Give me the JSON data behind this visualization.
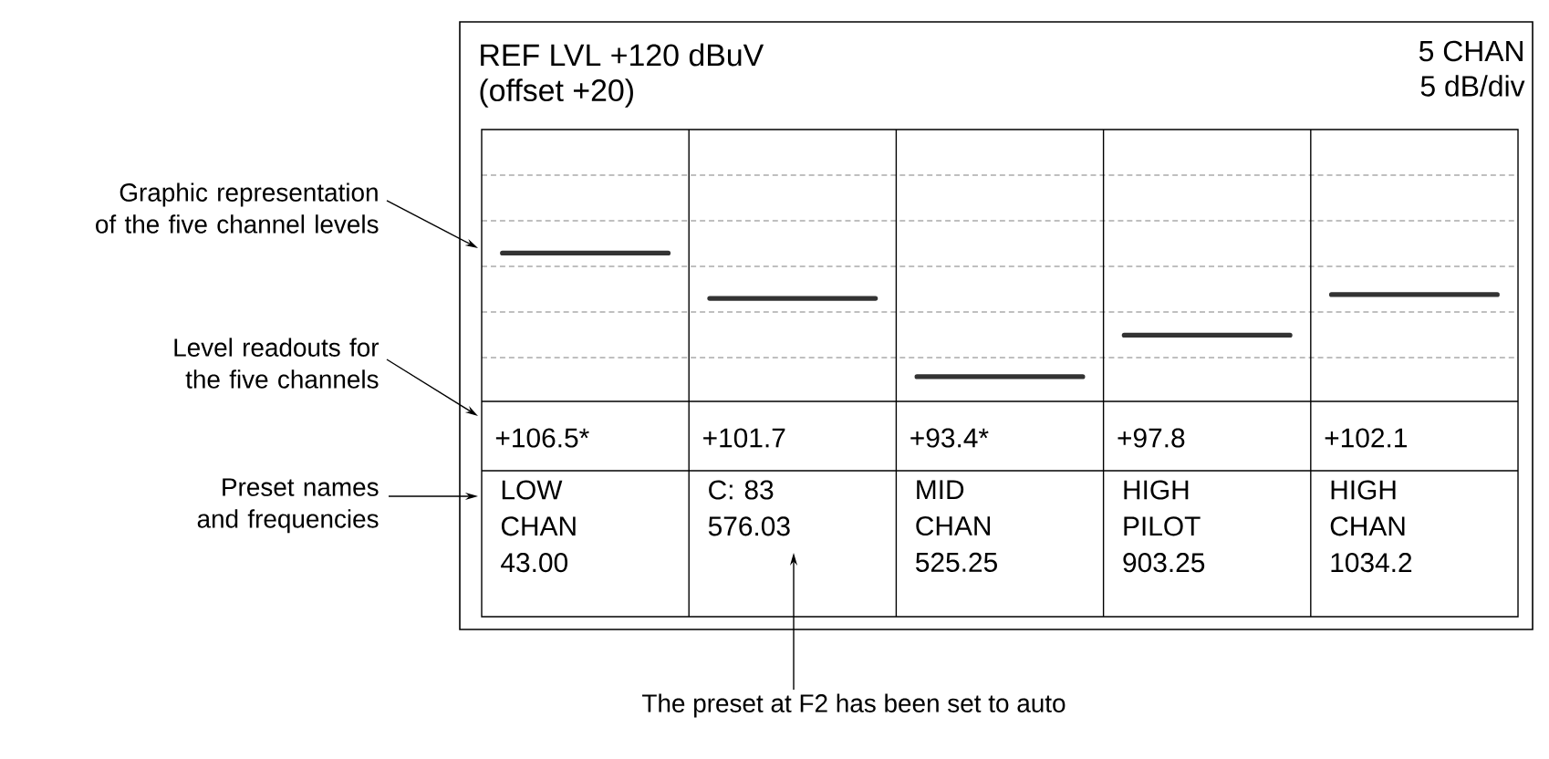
{
  "chart_data": {
    "type": "other",
    "title": "REF LVL +120 dBuV",
    "subtitle": "(offset +20)",
    "categories": [
      "LOW CHAN 43.00",
      "C: 83 576.03",
      "MID CHAN 525.25",
      "HIGH PILOT 903.25",
      "HIGH CHAN 1034.2"
    ],
    "values": [
      106.5,
      101.7,
      93.4,
      97.8,
      102.1
    ],
    "value_labels": [
      "+106.5*",
      "+101.7",
      "+93.4*",
      "+97.8",
      "+102.1"
    ],
    "color": "#333333",
    "annotations": [
      "5 CHAN",
      "5 dB/div",
      "Graphic representation of the five channel levels",
      "Level readouts for the five channels",
      "Preset names and frequencies",
      "The preset at F2 has been set to auto"
    ]
  }
}
